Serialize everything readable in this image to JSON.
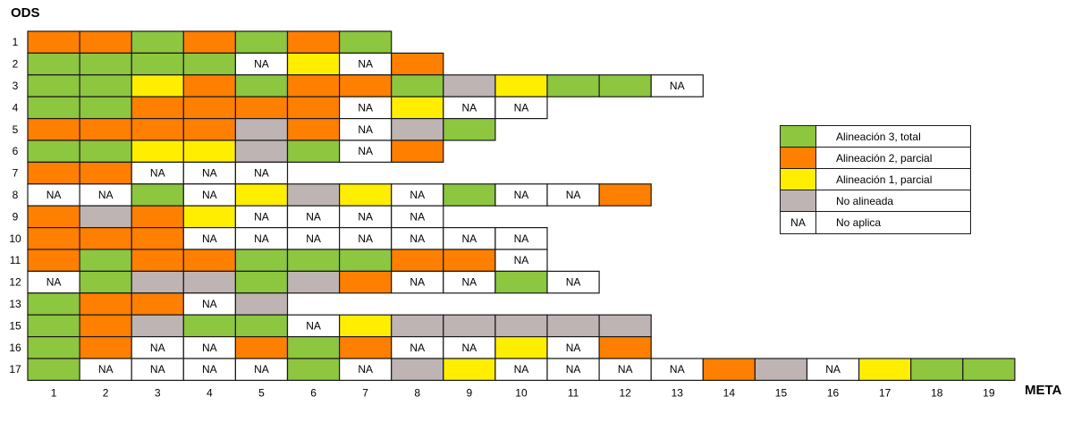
{
  "chart_data": {
    "type": "heatmap",
    "y_title": "ODS",
    "x_title": "META",
    "x_labels": [
      "1",
      "2",
      "3",
      "4",
      "5",
      "6",
      "7",
      "8",
      "9",
      "10",
      "11",
      "12",
      "13",
      "14",
      "15",
      "16",
      "17",
      "18",
      "19"
    ],
    "colors": {
      "T": "#8DC63F",
      "P": "#FF7F00",
      "L": "#FFEE00",
      "N": "#BEB4B4",
      "A": "#FFFFFF"
    },
    "na_text": "NA",
    "legend": [
      {
        "code": "T",
        "label": "Alineación 3, total"
      },
      {
        "code": "P",
        "label": "Alineación 2, parcial"
      },
      {
        "code": "L",
        "label": "Alineación 1, parcial"
      },
      {
        "code": "N",
        "label": "No alineada"
      },
      {
        "code": "A",
        "label": "No aplica"
      }
    ],
    "rows": [
      {
        "label": "1",
        "cells": [
          "P",
          "P",
          "T",
          "P",
          "T",
          "P",
          "T"
        ]
      },
      {
        "label": "2",
        "cells": [
          "T",
          "T",
          "T",
          "T",
          "A",
          "L",
          "A",
          "P"
        ]
      },
      {
        "label": "3",
        "cells": [
          "T",
          "T",
          "L",
          "P",
          "T",
          "P",
          "P",
          "T",
          "N",
          "L",
          "T",
          "T",
          "A"
        ]
      },
      {
        "label": "4",
        "cells": [
          "T",
          "T",
          "P",
          "P",
          "P",
          "P",
          "A",
          "L",
          "A",
          "A"
        ]
      },
      {
        "label": "5",
        "cells": [
          "P",
          "P",
          "P",
          "P",
          "N",
          "P",
          "A",
          "N",
          "T"
        ]
      },
      {
        "label": "6",
        "cells": [
          "T",
          "T",
          "L",
          "L",
          "N",
          "T",
          "A",
          "P"
        ]
      },
      {
        "label": "7",
        "cells": [
          "P",
          "P",
          "A",
          "A",
          "A"
        ]
      },
      {
        "label": "8",
        "cells": [
          "A",
          "A",
          "T",
          "A",
          "L",
          "N",
          "L",
          "A",
          "T",
          "A",
          "A",
          "P"
        ]
      },
      {
        "label": "9",
        "cells": [
          "P",
          "N",
          "P",
          "L",
          "A",
          "A",
          "A",
          "A"
        ]
      },
      {
        "label": "10",
        "cells": [
          "P",
          "P",
          "P",
          "A",
          "A",
          "A",
          "A",
          "A",
          "A",
          "A"
        ]
      },
      {
        "label": "11",
        "cells": [
          "P",
          "T",
          "P",
          "P",
          "T",
          "T",
          "T",
          "P",
          "P",
          "A"
        ]
      },
      {
        "label": "12",
        "cells": [
          "A",
          "T",
          "N",
          "N",
          "T",
          "N",
          "P",
          "A",
          "A",
          "T",
          "A"
        ]
      },
      {
        "label": "13",
        "cells": [
          "T",
          "P",
          "P",
          "A",
          "N"
        ]
      },
      {
        "label": "15",
        "cells": [
          "T",
          "P",
          "N",
          "T",
          "T",
          "A",
          "L",
          "N",
          "N",
          "N",
          "N",
          "N"
        ]
      },
      {
        "label": "16",
        "cells": [
          "T",
          "P",
          "A",
          "A",
          "P",
          "T",
          "P",
          "A",
          "A",
          "L",
          "A",
          "P"
        ]
      },
      {
        "label": "17",
        "cells": [
          "T",
          "A",
          "A",
          "A",
          "A",
          "T",
          "A",
          "N",
          "L",
          "A",
          "A",
          "A",
          "A",
          "P",
          "N",
          "A",
          "L",
          "T",
          "T"
        ]
      }
    ]
  }
}
